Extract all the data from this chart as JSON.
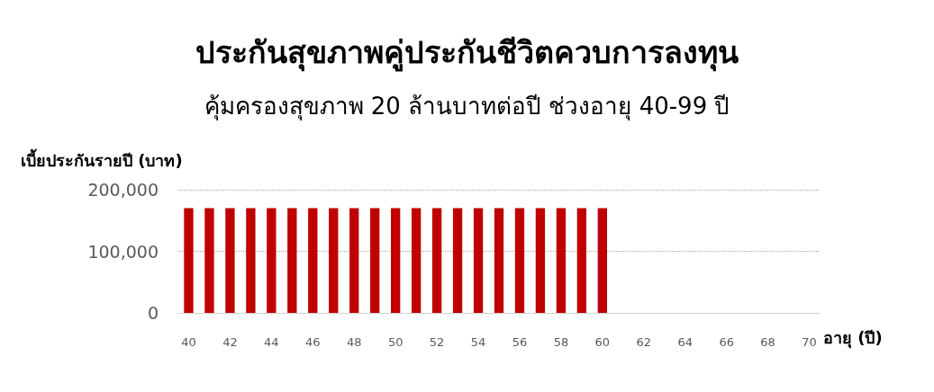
{
  "chart_data": {
    "type": "bar",
    "title": "ประกันสุขภาพคู่ประกันชีวิตควบการลงทุน",
    "subtitle": "คุ้มครองสุขภาพ 20 ล้านบาทต่อปี ช่วงอายุ 40-99 ปี",
    "ylabel": "เบี้ยประกันรายปี (บาท)",
    "xlabel": "อายุ (ปี)",
    "categories": [
      "40",
      null,
      "42",
      null,
      "44",
      null,
      "46",
      null,
      "48",
      null,
      "50",
      null,
      "52",
      null,
      "54",
      null,
      "56",
      null,
      "58",
      null,
      "60",
      null,
      "62",
      null,
      "64",
      null,
      "66",
      null,
      "68",
      null,
      "70"
    ],
    "values": [
      170000,
      170000,
      170000,
      170000,
      170000,
      170000,
      170000,
      170000,
      170000,
      170000,
      170000,
      170000,
      170000,
      170000,
      170000,
      170000,
      170000,
      170000,
      170000,
      170000,
      170000,
      null,
      null,
      null,
      null,
      null,
      null,
      null,
      null,
      null,
      null
    ],
    "color": "#c00000",
    "ylim": [
      0,
      200000
    ],
    "yticks": [
      {
        "value": 0,
        "label": "0"
      },
      {
        "value": 100000,
        "label": "100,000"
      },
      {
        "value": 200000,
        "label": "200,000"
      }
    ],
    "grid": "y"
  }
}
